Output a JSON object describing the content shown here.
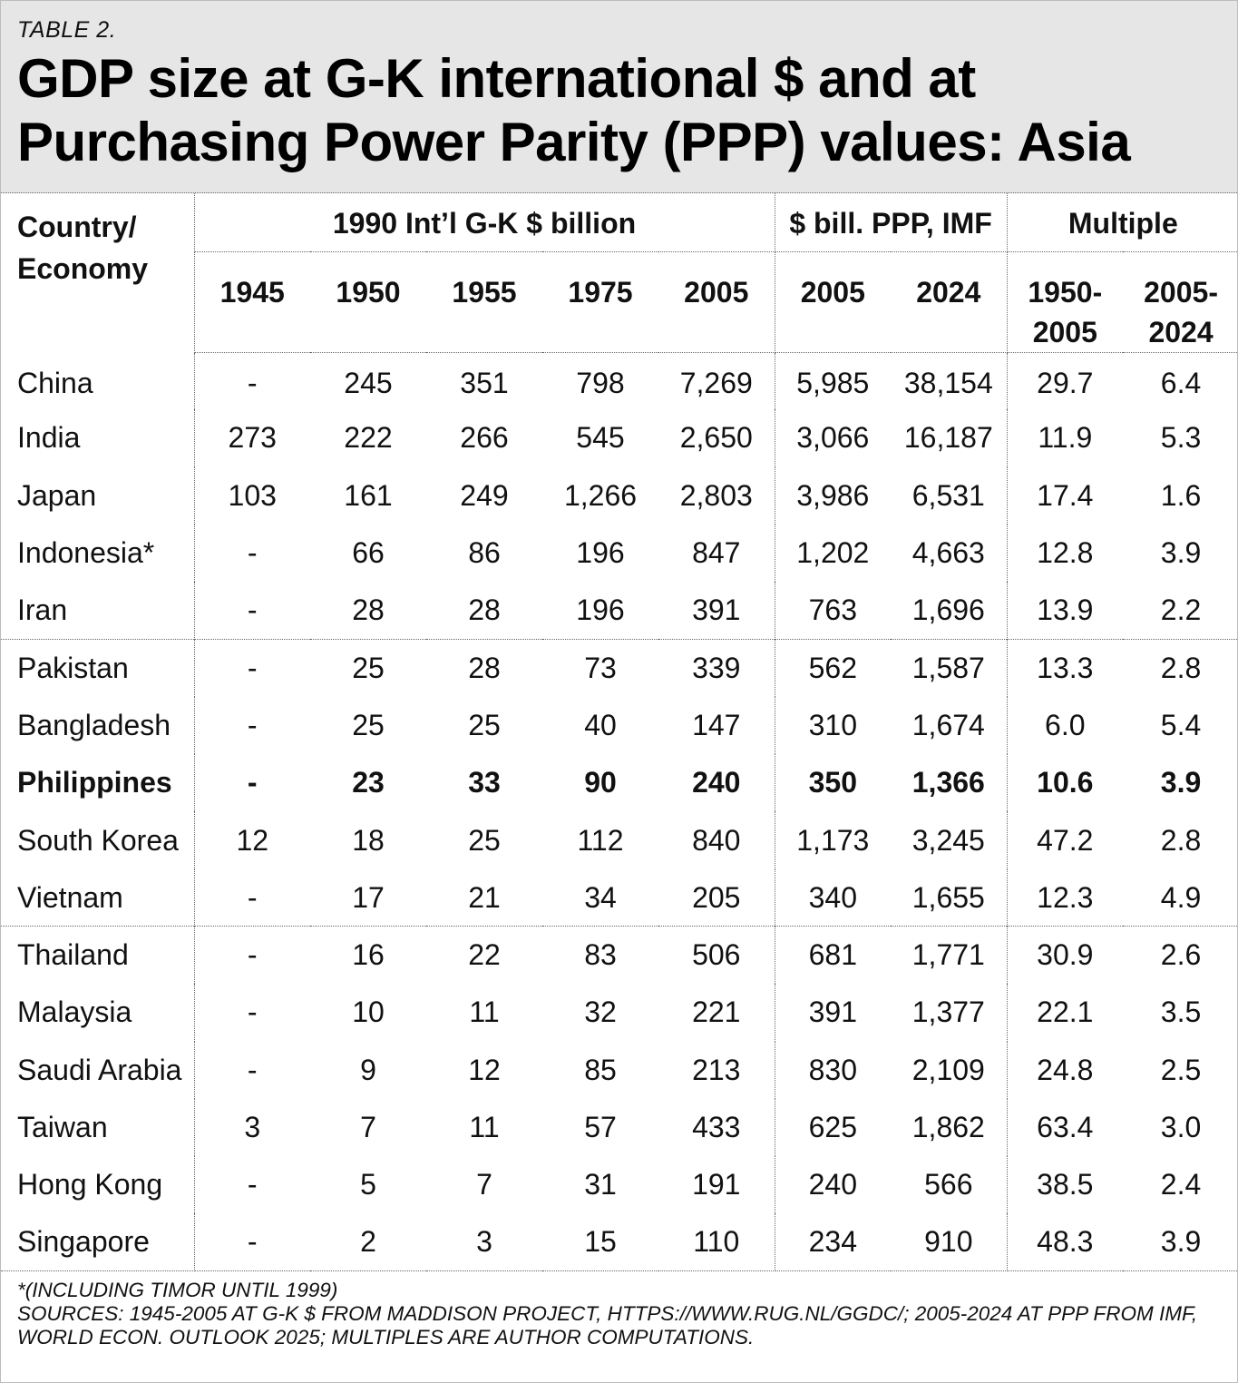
{
  "header": {
    "label": "TABLE 2.",
    "title_line1": "GDP size at G-K international $ and at",
    "title_line2": "Purchasing Power Parity (PPP) values: Asia"
  },
  "table": {
    "country_header_line1": "Country/",
    "country_header_line2": "Economy",
    "groups": [
      "1990 Int’l G-K $ billion",
      "$ bill. PPP, IMF",
      "Multiple"
    ],
    "columns": [
      "1945",
      "1950",
      "1955",
      "1975",
      "2005",
      "2005",
      "2024"
    ],
    "multiple_columns": [
      {
        "line1": "1950-",
        "line2": "2005"
      },
      {
        "line1": "2005-",
        "line2": "2024"
      }
    ],
    "rows": [
      {
        "name": "China",
        "cells": [
          "-",
          "245",
          "351",
          "798",
          "7,269",
          "5,985",
          "38,154",
          "29.7",
          "6.4"
        ]
      },
      {
        "name": "India",
        "cells": [
          "273",
          "222",
          "266",
          "545",
          "2,650",
          "3,066",
          "16,187",
          "11.9",
          "5.3"
        ]
      },
      {
        "name": "Japan",
        "cells": [
          "103",
          "161",
          "249",
          "1,266",
          "2,803",
          "3,986",
          "6,531",
          "17.4",
          "1.6"
        ]
      },
      {
        "name": "Indonesia*",
        "cells": [
          "-",
          "66",
          "86",
          "196",
          "847",
          "1,202",
          "4,663",
          "12.8",
          "3.9"
        ]
      },
      {
        "name": "Iran",
        "cells": [
          "-",
          "28",
          "28",
          "196",
          "391",
          "763",
          "1,696",
          "13.9",
          "2.2"
        ]
      },
      {
        "name": "Pakistan",
        "cells": [
          "-",
          "25",
          "28",
          "73",
          "339",
          "562",
          "1,587",
          "13.3",
          "2.8"
        ]
      },
      {
        "name": "Bangladesh",
        "cells": [
          "-",
          "25",
          "25",
          "40",
          "147",
          "310",
          "1,674",
          "6.0",
          "5.4"
        ]
      },
      {
        "name": "Philippines",
        "cells": [
          "-",
          "23",
          "33",
          "90",
          "240",
          "350",
          "1,366",
          "10.6",
          "3.9"
        ]
      },
      {
        "name": "South Korea",
        "cells": [
          "12",
          "18",
          "25",
          "112",
          "840",
          "1,173",
          "3,245",
          "47.2",
          "2.8"
        ]
      },
      {
        "name": "Vietnam",
        "cells": [
          "-",
          "17",
          "21",
          "34",
          "205",
          "340",
          "1,655",
          "12.3",
          "4.9"
        ]
      },
      {
        "name": "Thailand",
        "cells": [
          "-",
          "16",
          "22",
          "83",
          "506",
          "681",
          "1,771",
          "30.9",
          "2.6"
        ]
      },
      {
        "name": "Malaysia",
        "cells": [
          "-",
          "10",
          "11",
          "32",
          "221",
          "391",
          "1,377",
          "22.1",
          "3.5"
        ]
      },
      {
        "name": "Saudi Arabia",
        "cells": [
          "-",
          "9",
          "12",
          "85",
          "213",
          "830",
          "2,109",
          "24.8",
          "2.5"
        ]
      },
      {
        "name": "Taiwan",
        "cells": [
          "3",
          "7",
          "11",
          "57",
          "433",
          "625",
          "1,862",
          "63.4",
          "3.0"
        ]
      },
      {
        "name": "Hong Kong",
        "cells": [
          "-",
          "5",
          "7",
          "31",
          "191",
          "240",
          "566",
          "38.5",
          "2.4"
        ]
      },
      {
        "name": "Singapore",
        "cells": [
          "-",
          "2",
          "3",
          "15",
          "110",
          "234",
          "910",
          "48.3",
          "3.9"
        ]
      }
    ]
  },
  "notes": {
    "line1": "*(INCLUDING TIMOR UNTIL 1999)",
    "line2": "SOURCES: 1945-2005 AT G-K $ FROM MADDISON PROJECT, HTTPS://WWW.RUG.NL/GGDC/; 2005-2024 AT PPP FROM IMF,",
    "line3": "WORLD ECON. OUTLOOK 2025; MULTIPLES ARE AUTHOR COMPUTATIONS."
  }
}
